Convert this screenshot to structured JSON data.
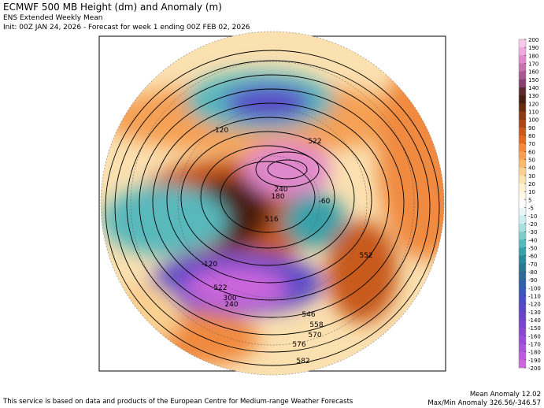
{
  "header": {
    "title": "ECMWF 500 MB Height (dm) and Anomaly (m)",
    "subtitle": "ENS Extended Weekly Mean",
    "init": "Init: 00Z JAN 24, 2026 - Forecast for week 1 ending 00Z FEB 02, 2026"
  },
  "colorbar": {
    "ticks": [
      200,
      190,
      180,
      170,
      160,
      150,
      140,
      130,
      120,
      110,
      100,
      90,
      80,
      70,
      60,
      50,
      40,
      30,
      20,
      10,
      5,
      -5,
      -10,
      -20,
      -30,
      -40,
      -50,
      -60,
      -70,
      -80,
      -90,
      -100,
      -110,
      -120,
      -130,
      -140,
      -150,
      -160,
      -170,
      -180,
      -190,
      -200
    ],
    "colors": [
      "#f8c8ec",
      "#f0a8e0",
      "#e088cc",
      "#c870b0",
      "#a85890",
      "#884070",
      "#5a2a30",
      "#4a1e10",
      "#6a2a10",
      "#8a3a14",
      "#a84818",
      "#c85a1e",
      "#e06a22",
      "#f08a40",
      "#f5a055",
      "#f8b870",
      "#fad090",
      "#fce4b0",
      "#fef2d0",
      "#fffae8",
      "#ffffff",
      "#e8f6f6",
      "#cdeeee",
      "#a8e0e0",
      "#80cccc",
      "#58b8bc",
      "#38a0a8",
      "#2a8898",
      "#2a7890",
      "#2c6a98",
      "#3060a8",
      "#3a58b8",
      "#4850c0",
      "#5a48c8",
      "#6a44c8",
      "#7a44cc",
      "#8a48d0",
      "#9a4cd4",
      "#aa54d8",
      "#bc5cdc",
      "#cc66dc"
    ]
  },
  "map": {
    "contour_labels": [
      "-120",
      "522",
      "240",
      "180",
      "516",
      "-60",
      "552",
      "-120",
      "522",
      "300",
      "240",
      "546",
      "558",
      "570",
      "576",
      "582"
    ]
  },
  "footer": {
    "credit": "This service is based on data and products of the European Centre for Medium-range Weather Forecasts",
    "mean_anomaly": "Mean Anomaly 12.02",
    "max_min": "Max/Min Anomaly 326.56/-346.57"
  }
}
